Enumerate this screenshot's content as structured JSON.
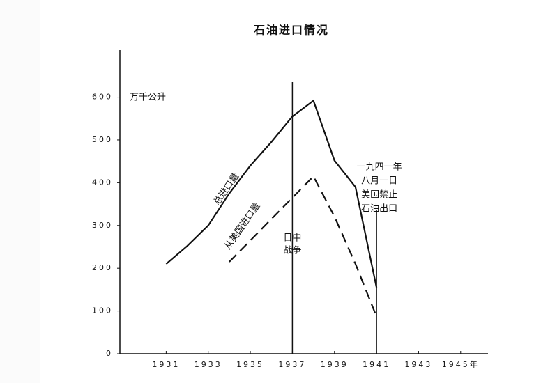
{
  "chart_data": {
    "type": "line",
    "title": "石油进口情况",
    "y_unit_label": "万千公升",
    "x": [
      1931,
      1932,
      1933,
      1934,
      1935,
      1936,
      1937,
      1938,
      1939,
      1940,
      1941
    ],
    "series": [
      {
        "name": "总进口量",
        "color": "#111111",
        "line_style": "solid",
        "values": [
          210,
          252,
          300,
          375,
          440,
          495,
          555,
          592,
          452,
          390,
          155
        ]
      },
      {
        "name": "从美国进口量",
        "color": "#111111",
        "line_style": "dashed",
        "values": [
          null,
          null,
          null,
          215,
          265,
          315,
          365,
          415,
          321,
          210,
          87
        ]
      }
    ],
    "xlim": [
      1928.8,
      1946.3
    ],
    "ylim": [
      0,
      710
    ],
    "xticks": [
      1931,
      1933,
      1935,
      1937,
      1939,
      1941,
      1943,
      {
        "value": 1945,
        "label": "1945年"
      }
    ],
    "yticks": [
      0,
      100,
      200,
      300,
      400,
      500,
      600
    ],
    "grid": false,
    "events": [
      {
        "x": 1937,
        "label_lines": [
          "日中",
          "战争"
        ]
      },
      {
        "x": 1941,
        "label_lines": [
          "一九四一年",
          "八月一日",
          "美国禁止",
          "石油出口"
        ]
      }
    ]
  }
}
